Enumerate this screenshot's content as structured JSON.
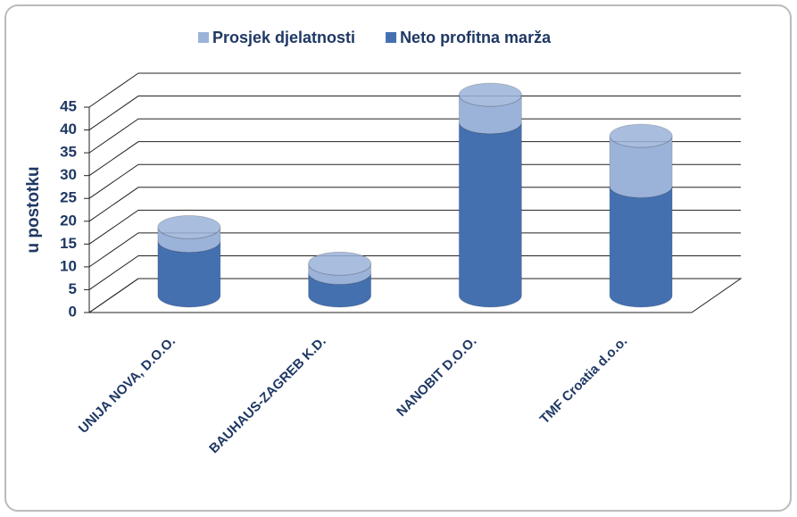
{
  "chart_data": {
    "type": "bar3d-stacked",
    "y_label": "u postotku",
    "categories": [
      "UNIJA NOVA, D.O.O.",
      "BAUHAUS-ZAGREB K.D.",
      "NANOBIT D.O.O.",
      "TMF Croatia d.o.o."
    ],
    "series": [
      {
        "name": "Neto profitna marža",
        "color": "#4470b0",
        "values": [
          12,
          5,
          38,
          24
        ]
      },
      {
        "name": "Prosjek djelatnosti",
        "color": "#9bb3d9",
        "values": [
          3,
          2,
          6,
          11
        ]
      }
    ],
    "legend_order": [
      1,
      0
    ],
    "ylim": [
      0,
      45
    ],
    "yticks": [
      0,
      5,
      10,
      15,
      20,
      25,
      30,
      35,
      40,
      45
    ],
    "grid": true
  }
}
